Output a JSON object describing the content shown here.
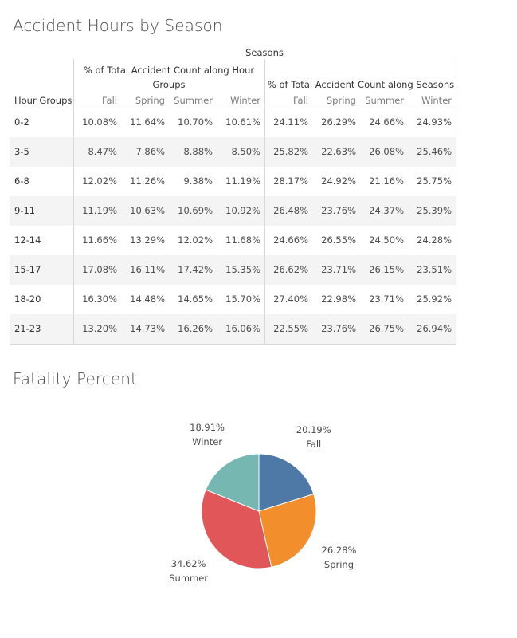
{
  "table_title": "Accident Hours by Season",
  "pie_title": "Fatality Percent",
  "table": {
    "top_header": "Seasons",
    "group1_label": "% of Total Accident Count along Hour Groups",
    "group2_label": "% of Total Accident Count along Seasons",
    "row_header_label": "Hour Groups",
    "seasons": [
      "Fall",
      "Spring",
      "Summer",
      "Winter"
    ],
    "rows": [
      {
        "label": "0-2",
        "g1": [
          "10.08%",
          "11.64%",
          "10.70%",
          "10.61%"
        ],
        "g2": [
          "24.11%",
          "26.29%",
          "24.66%",
          "24.93%"
        ]
      },
      {
        "label": "3-5",
        "g1": [
          "8.47%",
          "7.86%",
          "8.88%",
          "8.50%"
        ],
        "g2": [
          "25.82%",
          "22.63%",
          "26.08%",
          "25.46%"
        ]
      },
      {
        "label": "6-8",
        "g1": [
          "12.02%",
          "11.26%",
          "9.38%",
          "11.19%"
        ],
        "g2": [
          "28.17%",
          "24.92%",
          "21.16%",
          "25.75%"
        ]
      },
      {
        "label": "9-11",
        "g1": [
          "11.19%",
          "10.63%",
          "10.69%",
          "10.92%"
        ],
        "g2": [
          "26.48%",
          "23.76%",
          "24.37%",
          "25.39%"
        ]
      },
      {
        "label": "12-14",
        "g1": [
          "11.66%",
          "13.29%",
          "12.02%",
          "11.68%"
        ],
        "g2": [
          "24.66%",
          "26.55%",
          "24.50%",
          "24.28%"
        ]
      },
      {
        "label": "15-17",
        "g1": [
          "17.08%",
          "16.11%",
          "17.42%",
          "15.35%"
        ],
        "g2": [
          "26.62%",
          "23.71%",
          "26.15%",
          "23.51%"
        ]
      },
      {
        "label": "18-20",
        "g1": [
          "16.30%",
          "14.48%",
          "14.65%",
          "15.70%"
        ],
        "g2": [
          "27.40%",
          "22.98%",
          "23.71%",
          "25.92%"
        ]
      },
      {
        "label": "21-23",
        "g1": [
          "13.20%",
          "14.73%",
          "16.26%",
          "16.06%"
        ],
        "g2": [
          "22.55%",
          "23.76%",
          "26.75%",
          "26.94%"
        ]
      }
    ]
  },
  "chart_data": {
    "type": "pie",
    "title": "Fatality Percent",
    "slices": [
      {
        "label": "Fall",
        "value": 20.19,
        "display": "20.19%",
        "color": "#4e79a7"
      },
      {
        "label": "Spring",
        "value": 26.28,
        "display": "26.28%",
        "color": "#f28e2b"
      },
      {
        "label": "Summer",
        "value": 34.62,
        "display": "34.62%",
        "color": "#e15759"
      },
      {
        "label": "Winter",
        "value": 18.91,
        "display": "18.91%",
        "color": "#76b7b2"
      }
    ],
    "start_angle": "12 o'clock",
    "direction": "clockwise"
  }
}
